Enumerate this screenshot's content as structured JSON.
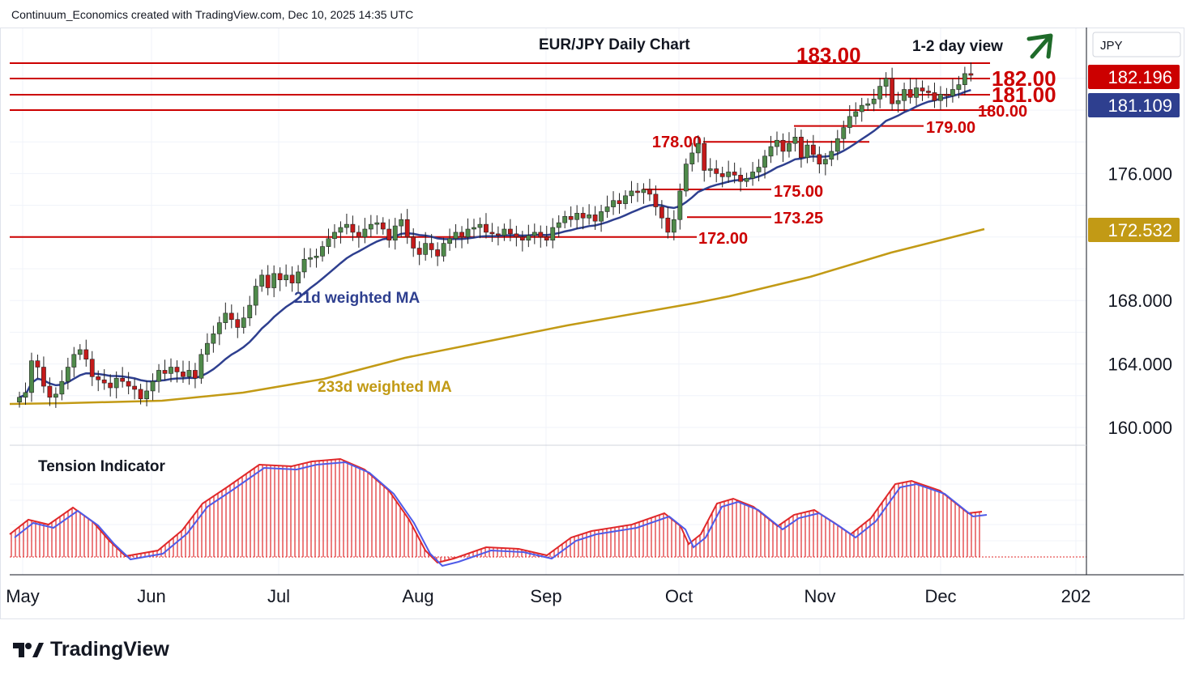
{
  "header": {
    "credit": "Continuum_Economics created with TradingView.com, Dec 10, 2025 14:35 UTC"
  },
  "brand": {
    "name": "TradingView"
  },
  "colors": {
    "up_candle": "#4f8a4a",
    "down_candle": "#c41a1a",
    "level_line": "#cc0000",
    "ma21": "#2e3f8f",
    "ma233": "#c29a15",
    "tension_bar": "#e0282a",
    "tension_line": "#4f5be8",
    "arrow": "#1f6b2a"
  },
  "chart_data": {
    "type": "candlestick",
    "title": "EUR/JPY Daily Chart",
    "view_label": "1-2 day view",
    "currency": "JPY",
    "y_ticks": [
      "176.000",
      "168.000",
      "164.000",
      "160.000"
    ],
    "x_ticks": [
      "May",
      "Jun",
      "Jul",
      "Aug",
      "Sep",
      "Oct",
      "Nov",
      "Dec",
      "202"
    ],
    "price_badges": [
      {
        "value": "182.196",
        "color": "#cc0000"
      },
      {
        "value": "181.109",
        "color": "#2e3f8f"
      },
      {
        "value": "172.532",
        "color": "#c29a15"
      }
    ],
    "levels": [
      {
        "label": "183.00",
        "value": 183.0
      },
      {
        "label": "182.00",
        "value": 182.0
      },
      {
        "label": "181.00",
        "value": 181.0
      },
      {
        "label": "180.00",
        "value": 180.0
      },
      {
        "label": "179.00",
        "value": 179.0
      },
      {
        "label": "178.00",
        "value": 178.0
      },
      {
        "label": "175.00",
        "value": 175.0
      },
      {
        "label": "173.25",
        "value": 173.25
      },
      {
        "label": "172.00",
        "value": 172.0
      }
    ],
    "ma_labels": {
      "ma21": "21d weighted MA",
      "ma233": "233d weighted MA"
    },
    "sub_panel_title": "Tension Indicator",
    "closes": [
      161.9,
      162.2,
      164.2,
      163.8,
      162.6,
      161.9,
      162.1,
      162.9,
      163.8,
      164.6,
      164.9,
      164.3,
      163.2,
      163.0,
      162.8,
      162.5,
      163.1,
      162.9,
      162.6,
      162.4,
      161.8,
      162.3,
      162.9,
      163.6,
      163.4,
      163.8,
      163.5,
      163.2,
      163.6,
      163.1,
      164.6,
      165.3,
      165.9,
      166.6,
      167.2,
      166.8,
      166.3,
      166.9,
      167.7,
      168.9,
      169.6,
      168.8,
      169.7,
      169.3,
      169.6,
      169.1,
      169.8,
      170.6,
      170.7,
      170.8,
      171.4,
      171.9,
      172.3,
      172.6,
      172.8,
      172.3,
      172.0,
      172.5,
      172.8,
      172.9,
      172.5,
      171.8,
      172.7,
      173.1,
      172.0,
      171.3,
      170.9,
      171.6,
      171.2,
      170.8,
      171.6,
      171.9,
      172.3,
      172.0,
      172.5,
      172.6,
      172.8,
      172.3,
      172.2,
      172.1,
      172.5,
      172.2,
      172.0,
      171.8,
      172.1,
      172.3,
      172.0,
      171.8,
      172.6,
      172.9,
      173.3,
      173.1,
      173.5,
      173.2,
      173.4,
      173.0,
      173.6,
      173.9,
      174.3,
      174.1,
      174.6,
      174.9,
      174.8,
      175.0,
      174.7,
      173.9,
      173.2,
      172.3,
      173.1,
      174.9,
      176.6,
      177.3,
      177.9,
      176.2,
      176.3,
      176.0,
      175.8,
      176.1,
      175.9,
      175.5,
      175.7,
      176.1,
      176.4,
      177.1,
      177.7,
      178.1,
      177.4,
      177.9,
      178.3,
      177.0,
      177.8,
      177.2,
      176.6,
      176.9,
      177.4,
      178.2,
      178.9,
      179.6,
      179.9,
      180.3,
      180.4,
      180.7,
      181.5,
      182.0,
      180.4,
      180.6,
      181.3,
      180.8,
      181.4,
      181.2,
      181.1,
      180.6,
      181.0,
      180.9,
      181.3,
      181.6,
      182.3,
      182.196
    ]
  }
}
